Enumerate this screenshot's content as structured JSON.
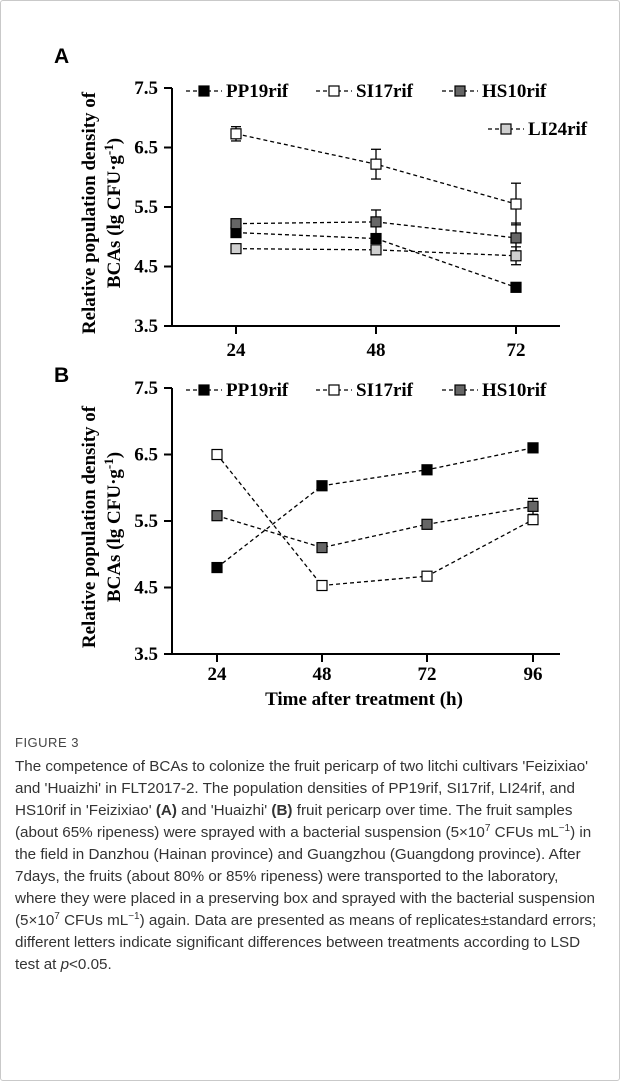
{
  "chart_data": [
    {
      "type": "line",
      "panel": "A",
      "ylabel_line1": "Relative population density of",
      "ylabel_line2": "BCAs (lg CFU·g",
      "ylabel_sup": "-1",
      "ylabel_end": ")",
      "xlabel": "",
      "ylim": [
        3.5,
        7.5
      ],
      "yticks": [
        "3.5",
        "4.5",
        "5.5",
        "6.5",
        "7.5"
      ],
      "categories": [
        "24",
        "48",
        "72"
      ],
      "legend_placement": "top",
      "series": [
        {
          "name": "PP19rif",
          "marker": "filled-black",
          "values": [
            5.07,
            4.97,
            4.15
          ],
          "errors": [
            0.05,
            0.08,
            0.05
          ]
        },
        {
          "name": "SI17rif",
          "marker": "open",
          "values": [
            6.73,
            6.22,
            5.55
          ],
          "errors": [
            0.12,
            0.25,
            0.35
          ]
        },
        {
          "name": "HS10rif",
          "marker": "dark-gray",
          "values": [
            5.22,
            5.25,
            4.98
          ],
          "errors": [
            0.06,
            0.2,
            0.25
          ]
        },
        {
          "name": "LI24rif",
          "marker": "light-gray",
          "values": [
            4.8,
            4.78,
            4.68
          ],
          "errors": [
            0.05,
            0.06,
            0.15
          ]
        }
      ]
    },
    {
      "type": "line",
      "panel": "B",
      "ylabel_line1": "Relative population density of",
      "ylabel_line2": "BCAs (lg CFU·g",
      "ylabel_sup": "-1",
      "ylabel_end": ")",
      "xlabel": "Time after treatment (h)",
      "ylim": [
        3.5,
        7.5
      ],
      "yticks": [
        "3.5",
        "4.5",
        "5.5",
        "6.5",
        "7.5"
      ],
      "categories": [
        "24",
        "48",
        "72",
        "96"
      ],
      "legend_placement": "top",
      "series": [
        {
          "name": "PP19rif",
          "marker": "filled-black",
          "values": [
            4.8,
            6.03,
            6.27,
            6.6
          ],
          "errors": [
            0.03,
            0.04,
            0.04,
            0.04
          ]
        },
        {
          "name": "SI17rif",
          "marker": "open",
          "values": [
            6.5,
            4.53,
            4.67,
            5.52
          ],
          "errors": [
            0.03,
            0.04,
            0.05,
            0.06
          ]
        },
        {
          "name": "HS10rif",
          "marker": "dark-gray",
          "values": [
            5.58,
            5.1,
            5.45,
            5.72
          ],
          "errors": [
            0.04,
            0.05,
            0.05,
            0.12
          ]
        }
      ]
    }
  ],
  "caption": {
    "label": "FIGURE 3",
    "p1": "The competence of BCAs to colonize the fruit pericarp of two litchi cultivars 'Feizixiao' and 'Huaizhi' in FLT2017-2. The population densities of PP19rif, SI17rif, LI24rif, and HS10rif in 'Feizixiao' ",
    "a": "(A)",
    "p2": " and 'Huaizhi' ",
    "b": "(B)",
    "p3": " fruit pericarp over time. The fruit samples (about 65% ripeness) were sprayed with a bacterial suspension (5×10",
    "sup1": "7",
    "p4": " CFUs mL",
    "sup2": "−1",
    "p5": ") in the field in Danzhou (Hainan province) and Guangzhou (Guangdong province). After 7days, the fruits (about 80% or 85% ripeness) were transported to the laboratory, where they were placed in a preserving box and sprayed with the bacterial suspension (5×10",
    "sup3": "7",
    "p6": " CFUs mL",
    "sup4": "−1",
    "p7": ") again. Data are presented as means of replicates±standard errors; different letters indicate significant differences between treatments according to LSD test at ",
    "p_italic": "p",
    "p8": "<0.05."
  },
  "colors": {
    "PP19rif": "#000000",
    "SI17rif": "#ffffff",
    "HS10rif": "#666666",
    "LI24rif": "#cfcfcf",
    "caption_text": "#333333",
    "frame": "#c9c9c9"
  }
}
